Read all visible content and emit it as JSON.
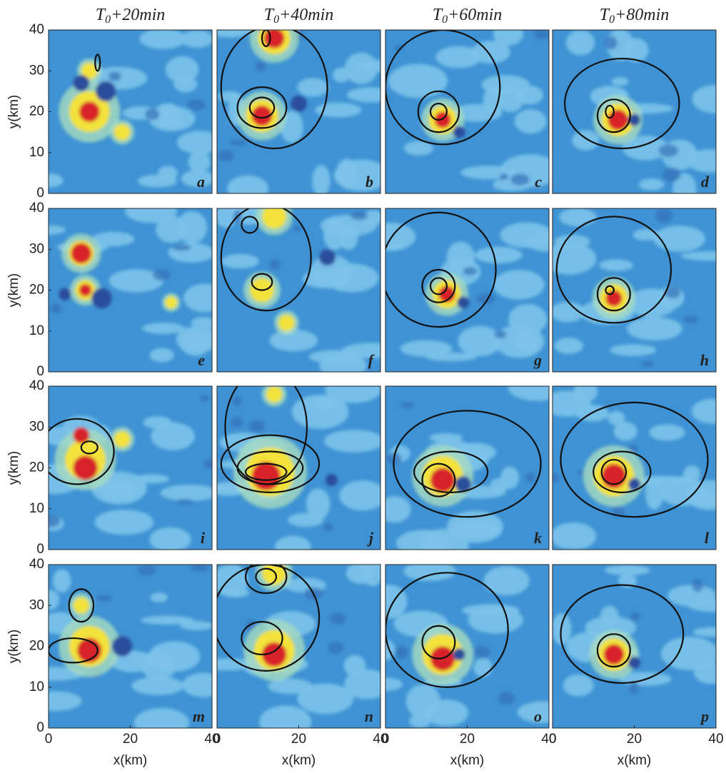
{
  "figure": {
    "column_titles": [
      {
        "base": "T",
        "sub": "0",
        "rest": "+20min"
      },
      {
        "base": "T",
        "sub": "0",
        "rest": "+40min"
      },
      {
        "base": "T",
        "sub": "0",
        "rest": "+60min"
      },
      {
        "base": "T",
        "sub": "0",
        "rest": "+80min"
      }
    ],
    "panel_labels": [
      "a",
      "b",
      "c",
      "d",
      "e",
      "f",
      "g",
      "h",
      "i",
      "j",
      "k",
      "l",
      "m",
      "n",
      "o",
      "p"
    ],
    "y_label": "y(km)",
    "x_label": "x(km)",
    "yticks": [
      0,
      10,
      20,
      30,
      40
    ],
    "xticks": [
      0,
      20,
      40
    ]
  }
}
